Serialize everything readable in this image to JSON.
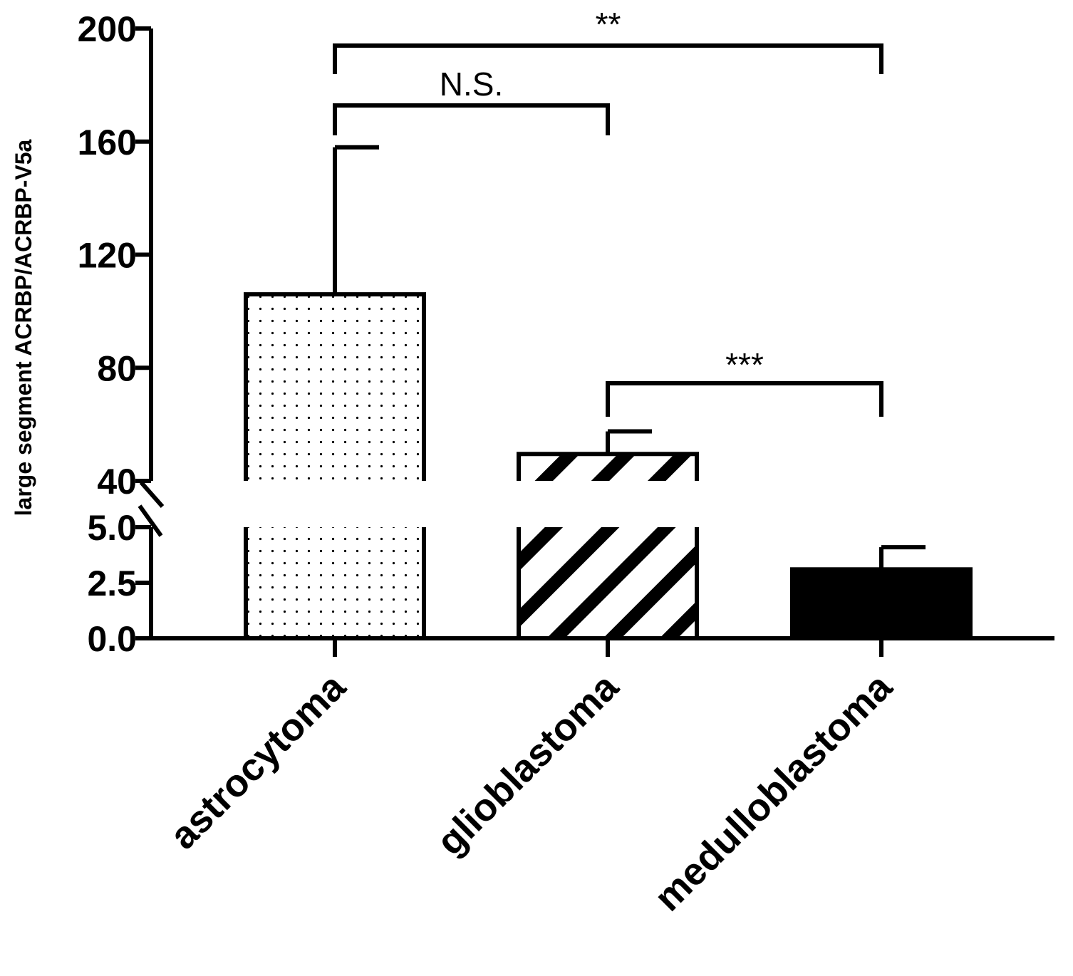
{
  "chart_data": {
    "type": "bar",
    "title": "",
    "ylabel": "large segment ACRBP/ACRBP-V5a",
    "xlabel": "",
    "categories": [
      "astrocytoma",
      "glioblastoma",
      "medulloblastoma"
    ],
    "values": [
      106,
      49.5,
      3.1
    ],
    "error_upper": [
      158,
      57.5,
      4.1
    ],
    "bar_patterns": [
      "dots",
      "diagonal-stripes",
      "solid"
    ],
    "bar_color": "#000000",
    "y_axis": {
      "broken": true,
      "lower_segment": {
        "range": [
          0,
          5
        ],
        "ticks": [
          "0.0",
          "2.5",
          "5.0"
        ]
      },
      "upper_segment": {
        "range": [
          40,
          200
        ],
        "ticks": [
          "40",
          "80",
          "120",
          "160",
          "200"
        ]
      }
    },
    "significance": [
      {
        "from": "astrocytoma",
        "to": "medulloblastoma",
        "label": "**"
      },
      {
        "from": "astrocytoma",
        "to": "glioblastoma",
        "label": "N.S."
      },
      {
        "from": "glioblastoma",
        "to": "medulloblastoma",
        "label": "***"
      }
    ]
  }
}
